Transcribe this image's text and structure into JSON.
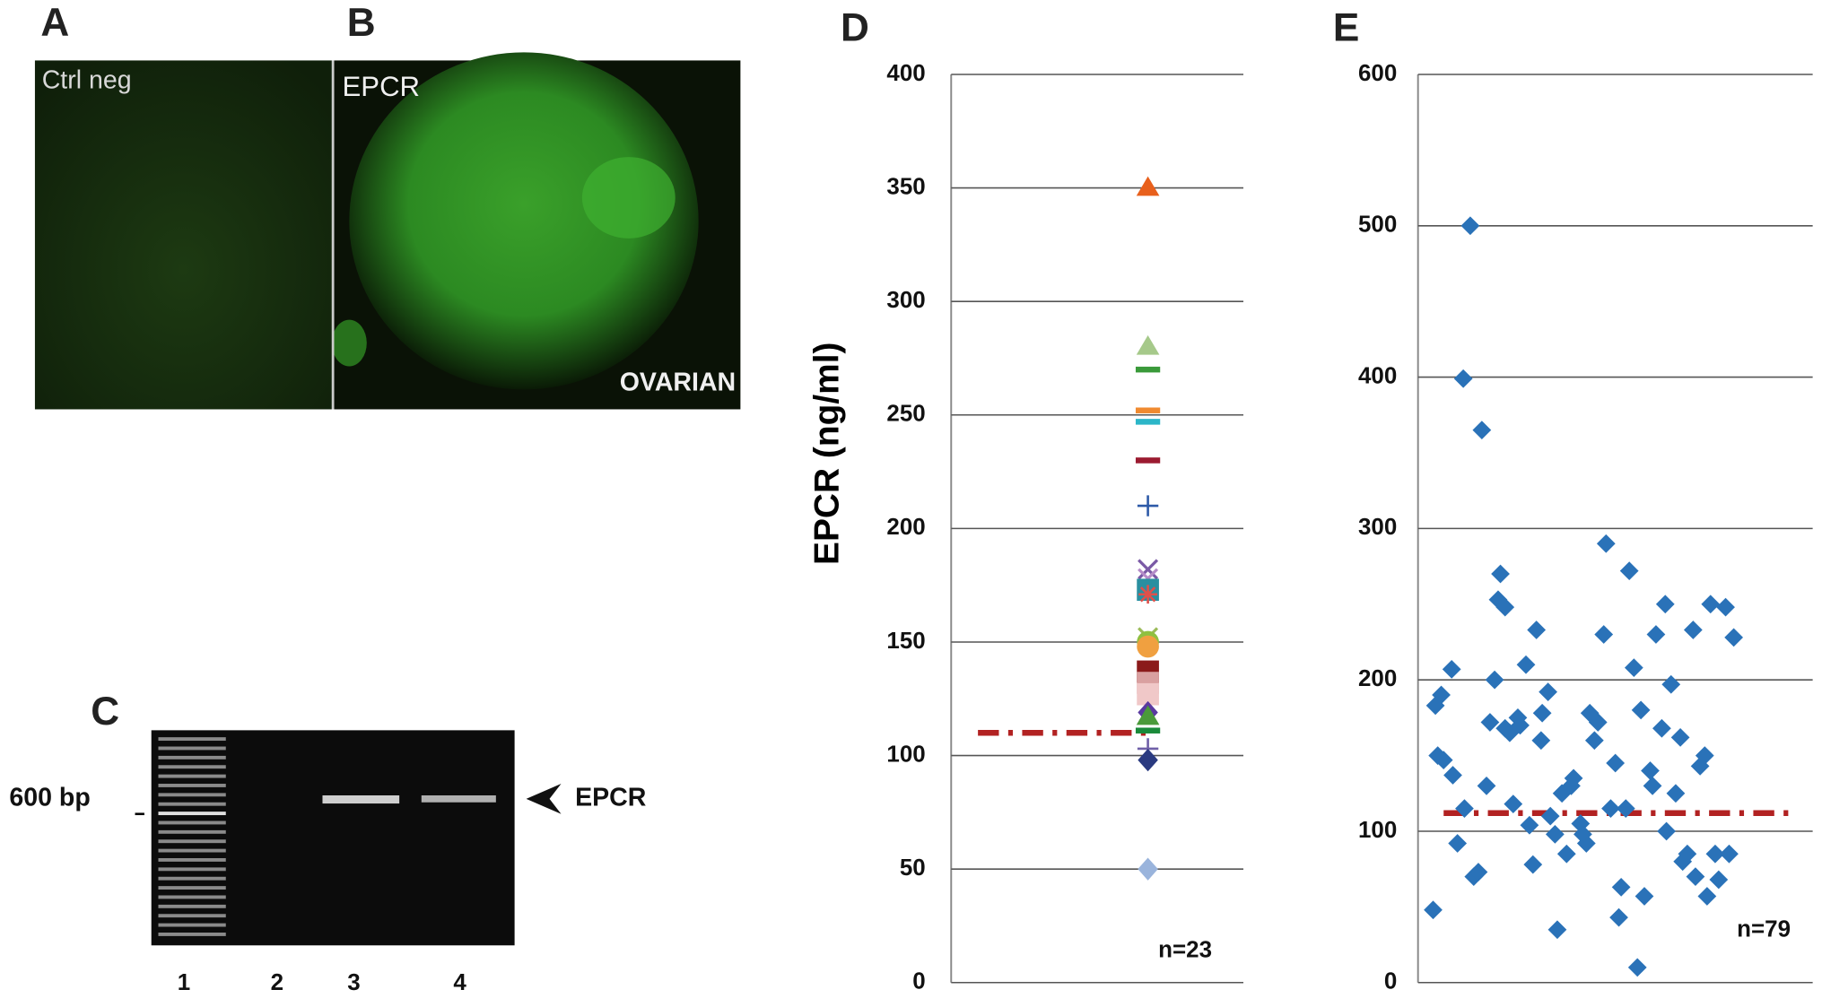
{
  "panels": [
    {
      "label": "A",
      "caption": "Ctrl neg"
    },
    {
      "label": "B",
      "caption": "EPCR",
      "corner_text": "OVARIAN"
    },
    {
      "label": "C",
      "lanes": [
        "1",
        "2",
        "3",
        "4"
      ],
      "size_marker": "600 bp",
      "band": "EPCR"
    }
  ],
  "chart_data": [
    {
      "type": "marker-strip",
      "panel_label": "D",
      "y_label": "EPCR (ng/ml)",
      "annotation": "n=23",
      "values": [
        350,
        280,
        270,
        252,
        247,
        230,
        210,
        182,
        178,
        173,
        171,
        152,
        150,
        148,
        137,
        132,
        127,
        119,
        117,
        111,
        103,
        98,
        50
      ],
      "colors": [
        "#e8601c",
        "#a6c98a",
        "#3a9a3a",
        "#f08a30",
        "#2cb6c8",
        "#9b1b30",
        "#2e5aa8",
        "#7b5aa6",
        "#b58cc8",
        "#2a8fa0",
        "#e0504a",
        "#9bbb59",
        "#8fc040",
        "#f0a040",
        "#8b1a1a",
        "#d9a0a0",
        "#f0c8c8",
        "#5a3aa0",
        "#4a9a3a",
        "#1a8a3a",
        "#7060a8",
        "#2a3a80",
        "#9ab4dc"
      ],
      "markers": [
        "triangle",
        "triangle",
        "dash",
        "dash",
        "dash",
        "dash",
        "plus",
        "x",
        "x",
        "square",
        "star",
        "x",
        "circle",
        "circle",
        "square",
        "square",
        "square",
        "diamond",
        "triangle",
        "dash",
        "plus",
        "diamond",
        "diamond"
      ],
      "threshold": 110,
      "threshold_color": "#b22222",
      "ylim": [
        0,
        400
      ],
      "yticks": [
        0,
        50,
        100,
        150,
        200,
        250,
        300,
        350,
        400
      ],
      "grid": true
    },
    {
      "type": "scatter",
      "panel_label": "E",
      "annotation": "n=79",
      "color": "#2a72b8",
      "x": [
        13,
        15,
        20,
        17,
        22,
        29,
        30,
        34,
        40,
        45,
        39,
        48,
        52,
        55,
        59,
        62,
        66,
        71,
        69,
        75,
        75,
        79,
        82,
        86,
        88,
        93,
        96,
        99,
        102,
        107,
        106,
        112,
        114,
        118,
        120,
        124,
        128,
        132,
        134,
        140,
        142,
        145,
        148,
        152,
        155,
        160,
        162,
        166,
        170,
        173,
        175,
        179,
        182,
        186,
        189,
        192,
        195,
        200,
        202,
        205,
        210,
        213,
        218,
        222,
        226,
        228,
        232,
        237,
        239,
        243,
        247,
        249,
        252,
        256,
        259,
        265,
        268,
        272,
        214
      ],
      "values": [
        48,
        183,
        190,
        150,
        147,
        207,
        137,
        92,
        115,
        500,
        399,
        70,
        73,
        365,
        130,
        172,
        200,
        270,
        253,
        248,
        168,
        165,
        118,
        175,
        170,
        210,
        104,
        78,
        233,
        178,
        160,
        192,
        110,
        98,
        35,
        125,
        85,
        130,
        135,
        105,
        98,
        92,
        178,
        160,
        172,
        230,
        290,
        115,
        145,
        43,
        63,
        115,
        272,
        208,
        10,
        180,
        57,
        140,
        130,
        230,
        168,
        250,
        197,
        125,
        162,
        80,
        85,
        233,
        70,
        143,
        150,
        57,
        250,
        85,
        68,
        248,
        85,
        228,
        100
      ],
      "xlim": [
        0,
        340
      ],
      "threshold": 112,
      "threshold_color": "#b22222",
      "ylim": [
        0,
        600
      ],
      "yticks": [
        0,
        100,
        200,
        300,
        400,
        500,
        600
      ],
      "grid": true
    }
  ]
}
